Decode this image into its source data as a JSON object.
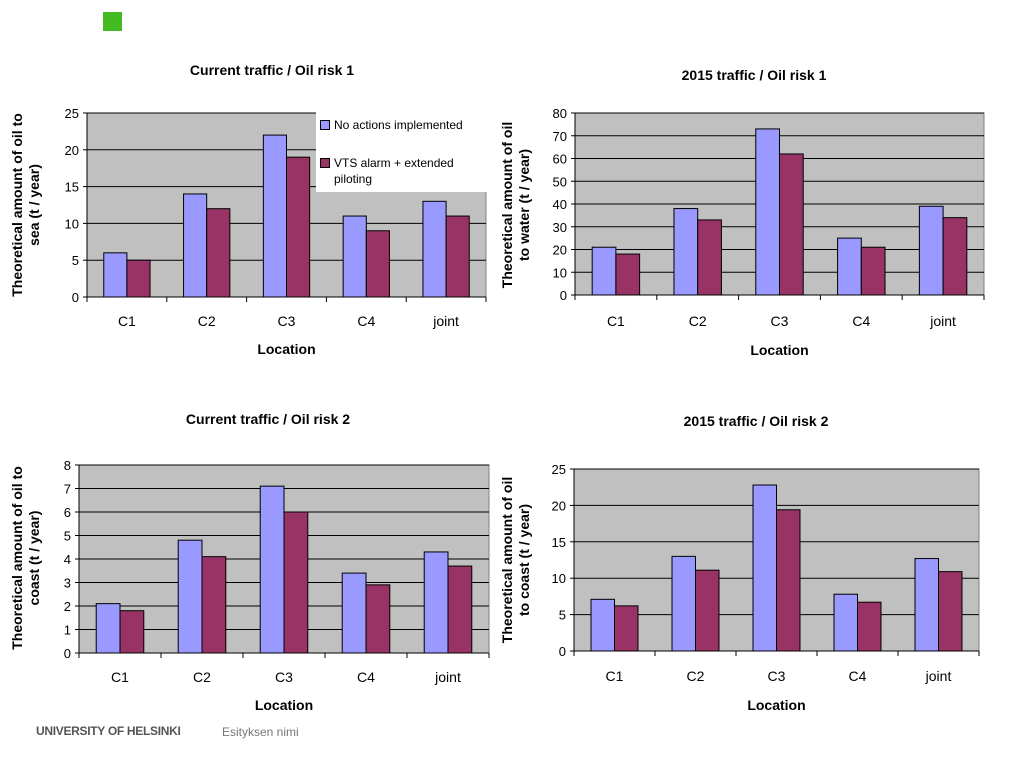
{
  "colors": {
    "accent_square": "#44bb22",
    "series_a": "#9999ff",
    "series_b": "#993366",
    "plot_bg": "#c0c0c0",
    "footer_gray": "#555555"
  },
  "footer": {
    "logo": "UNIVERSITY OF HELSINKI",
    "presentation_name": "Esityksen nimi"
  },
  "legend": {
    "items": [
      "No actions implemented",
      "VTS alarm + extended piloting"
    ]
  },
  "chart_data": [
    {
      "type": "bar",
      "title": "Current traffic / Oil risk 1",
      "xlabel": "Location",
      "ylabel": "Theoretical amount of oil to sea (t / year)",
      "categories": [
        "C1",
        "C2",
        "C3",
        "C4",
        "joint"
      ],
      "ylim": [
        0,
        25
      ],
      "ystep": 5,
      "grid": true,
      "legend": "top-right",
      "series": [
        {
          "name": "No actions implemented",
          "values": [
            6,
            14,
            22,
            11,
            13
          ]
        },
        {
          "name": "VTS alarm + extended piloting",
          "values": [
            5,
            12,
            19,
            9,
            11
          ]
        }
      ]
    },
    {
      "type": "bar",
      "title": "2015 traffic / Oil risk 1",
      "xlabel": "Location",
      "ylabel": "Theoretical amount of oil to water (t / year)",
      "categories": [
        "C1",
        "C2",
        "C3",
        "C4",
        "joint"
      ],
      "ylim": [
        0,
        80
      ],
      "ystep": 10,
      "grid": true,
      "series": [
        {
          "name": "No actions implemented",
          "values": [
            21,
            38,
            73,
            25,
            39
          ]
        },
        {
          "name": "VTS alarm + extended piloting",
          "values": [
            18,
            33,
            62,
            21,
            34
          ]
        }
      ]
    },
    {
      "type": "bar",
      "title": "Current traffic / Oil risk 2",
      "xlabel": "Location",
      "ylabel": "Theoretical amount of oil to coast (t / year)",
      "categories": [
        "C1",
        "C2",
        "C3",
        "C4",
        "joint"
      ],
      "ylim": [
        0,
        8
      ],
      "ystep": 1,
      "grid": true,
      "series": [
        {
          "name": "No actions implemented",
          "values": [
            2.1,
            4.8,
            7.1,
            3.4,
            4.3
          ]
        },
        {
          "name": "VTS alarm + extended piloting",
          "values": [
            1.8,
            4.1,
            6.0,
            2.9,
            3.7
          ]
        }
      ]
    },
    {
      "type": "bar",
      "title": "2015 traffic / Oil risk 2",
      "xlabel": "Location",
      "ylabel": "Theoretical amount of oil to coast (t / year)",
      "categories": [
        "C1",
        "C2",
        "C3",
        "C4",
        "joint"
      ],
      "ylim": [
        0,
        25
      ],
      "ystep": 5,
      "grid": true,
      "series": [
        {
          "name": "No actions implemented",
          "values": [
            7.1,
            13.0,
            22.8,
            7.8,
            12.7
          ]
        },
        {
          "name": "VTS alarm + extended piloting",
          "values": [
            6.2,
            11.1,
            19.4,
            6.7,
            10.9
          ]
        }
      ]
    }
  ]
}
